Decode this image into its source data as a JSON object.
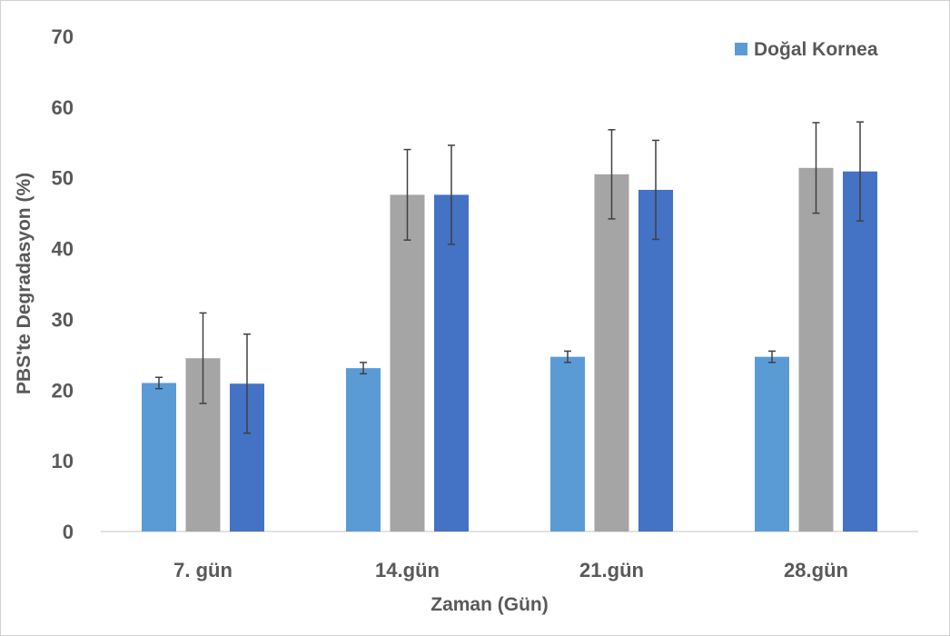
{
  "chart_data": {
    "type": "bar",
    "xlabel": "Zaman (Gün)",
    "ylabel": "PBS'te Degradasyon (%)",
    "ylim": [
      0,
      70
    ],
    "yticks": [
      0,
      10,
      20,
      30,
      40,
      50,
      60,
      70
    ],
    "grid": false,
    "legend_position": "top-right",
    "categories": [
      "7. gün",
      "14.gün",
      "21.gün",
      "28.gün"
    ],
    "series": [
      {
        "name": "Doğal Kornea",
        "color": "#5b9bd5",
        "values": [
          21.0,
          23.1,
          24.7,
          24.7
        ],
        "errors": [
          0.8,
          0.8,
          0.8,
          0.8
        ],
        "in_legend": true
      },
      {
        "color": "#a5a5a5",
        "values": [
          24.5,
          47.6,
          50.5,
          51.4
        ],
        "errors": [
          6.4,
          6.4,
          6.3,
          6.4
        ],
        "in_legend": false
      },
      {
        "color": "#4472c4",
        "values": [
          20.9,
          47.6,
          48.3,
          50.9
        ],
        "errors": [
          7.0,
          7.0,
          7.0,
          7.0
        ],
        "in_legend": false
      }
    ]
  }
}
